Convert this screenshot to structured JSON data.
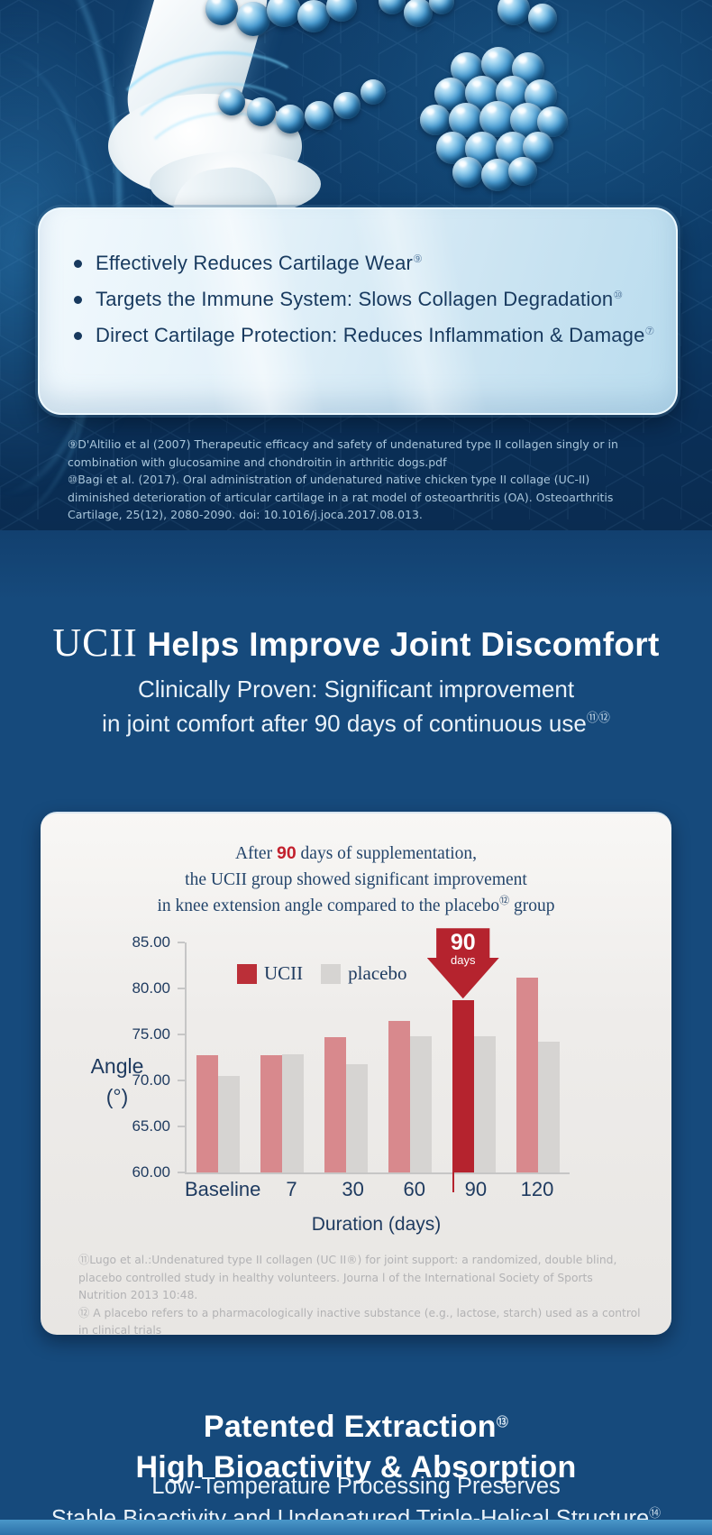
{
  "hero": {
    "bullets": [
      {
        "label": "Effectively Reduces Cartilage Wear",
        "sup": "⑨"
      },
      {
        "label": "Targets the Immune System: Slows Collagen Degradation",
        "sup": "⑩"
      },
      {
        "label": "Direct Cartilage Protection: Reduces Inflammation & Damage",
        "sup": "⑦"
      }
    ],
    "footnotes": [
      "⑨D'Altilio et al (2007) Therapeutic efficacy and safety of undenatured type II collagen singly or in combination with glucosamine and chondroitin in arthritic dogs.pdf",
      "⑩Bagi et al. (2017). Oral administration of undenatured native chicken type II collage (UC-II) diminished deterioration of articular cartilage in a rat model of osteoarthritis (OA). Osteoarthritis Cartilage, 25(12), 2080-2090. doi: 10.1016/j.joca.2017.08.013."
    ]
  },
  "section2": {
    "brand": "UCII",
    "title": " Helps Improve Joint Discomfort",
    "subtitle_line1": "Clinically Proven: Significant improvement",
    "subtitle_line2": "in joint comfort after 90 days of continuous use",
    "subtitle_sup": "⑪⑫"
  },
  "chart_card": {
    "caption_line1_pre": "After ",
    "caption_line1_highlight": "90",
    "caption_line1_post": " days of supplementation,",
    "caption_line2": "the UCII group showed significant improvement",
    "caption_line3_pre": "in knee extension angle compared to the placebo",
    "caption_line3_sup": "⑫",
    "caption_line3_post": " group",
    "footnotes": [
      "⑪Lugo et al.:Undenatured type II collagen (UC II®) for joint support: a randomized, double blind, placebo controlled study in healthy volunteers. Journa l of the International Society of Sports Nutrition 2013 10:48.",
      "⑫ A placebo refers to a pharmacologically inactive substance (e.g., lactose, starch) used as a control in clinical trials"
    ]
  },
  "chart_data": {
    "type": "bar",
    "title": "After 90 days of supplementation, the UCII group showed significant improvement in knee extension angle compared to the placebo group",
    "categories": [
      "Baseline",
      "7",
      "30",
      "60",
      "90",
      "120"
    ],
    "series": [
      {
        "name": "UCII",
        "values": [
          72.7,
          72.7,
          74.7,
          76.5,
          78.7,
          81.2
        ]
      },
      {
        "name": "placebo",
        "values": [
          70.5,
          72.8,
          71.8,
          74.8,
          74.8,
          74.2
        ]
      }
    ],
    "xlabel": "Duration (days)",
    "ylabel_line1": "Angle",
    "ylabel_line2": "(°)",
    "ylim": [
      60,
      85
    ],
    "ytick_labels": [
      "85.00",
      "80.00",
      "75.00",
      "70.00",
      "65.00",
      "60.00"
    ],
    "grid": false,
    "legend_position": "top-left-inside",
    "legend": [
      "UCII",
      "placebo"
    ],
    "highlight": {
      "category": "90",
      "series": "UCII",
      "label_value": "90",
      "label_unit": "days"
    },
    "colors": {
      "ucii_bar": "#d8898d",
      "ucii_highlight_bar": "#b5232e",
      "placebo_bar": "#d6d4d2",
      "legend_ucii_swatch": "#bb2f38",
      "legend_placebo_swatch": "#d6d4d2",
      "axis_text": "#1e3a5f",
      "axis_line": "#c6c6c6",
      "caption_highlight_red": "#c2202d"
    }
  },
  "section3": {
    "title_line1": "Patented Extraction",
    "title_line1_sup": "⑬",
    "title_line2": "High Bioactivity & Absorption",
    "subtitle_line1": "Low-Temperature Processing Preserves",
    "subtitle_line2": "Stable Bioactivity and Undenatured Triple-Helical Structure",
    "subtitle_line2_sup": "⑭"
  }
}
